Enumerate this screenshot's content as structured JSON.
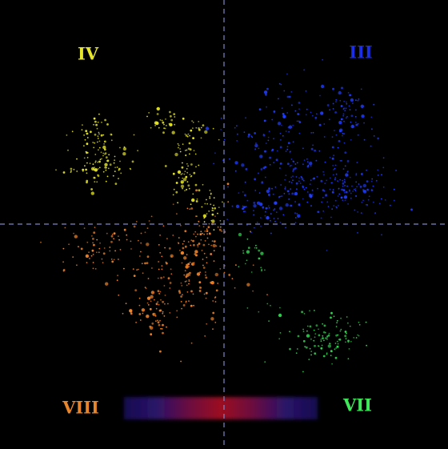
{
  "chart_data": {
    "type": "scatter",
    "title": "",
    "xlabel": "",
    "ylabel": "",
    "background": "#000000",
    "grid": false,
    "legend": "none",
    "xlim": [
      -280,
      280
    ],
    "ylim": [
      -281,
      280
    ],
    "crosshair": {
      "x": 0,
      "y": 0,
      "color": "#7f86c8",
      "style": "dashed"
    },
    "quadrant_labels": [
      {
        "text": "IV",
        "color": "#e6e62a",
        "x": -170,
        "y": 211
      },
      {
        "text": "III",
        "color": "#1a2ee6",
        "x": 171,
        "y": 213
      },
      {
        "text": "VIII",
        "color": "#e8842a",
        "x": -179,
        "y": -231
      },
      {
        "text": "VII",
        "color": "#3ee85a",
        "x": 167,
        "y": -228
      }
    ],
    "series": [
      {
        "color": "#e6e62a",
        "clusters": [
          {
            "cx": -155,
            "cy": 74,
            "sx": 20,
            "sy": 16,
            "n": 95
          },
          {
            "cx": -160,
            "cy": 116,
            "sx": 12,
            "sy": 10,
            "n": 35
          },
          {
            "cx": -77,
            "cy": 126,
            "sx": 11,
            "sy": 8,
            "n": 30
          },
          {
            "cx": -45,
            "cy": 88,
            "sx": 11,
            "sy": 14,
            "n": 35
          },
          {
            "cx": -48,
            "cy": 50,
            "sx": 9,
            "sy": 11,
            "n": 35
          },
          {
            "cx": -32,
            "cy": 114,
            "sx": 10,
            "sy": 10,
            "n": 15
          },
          {
            "cx": -18,
            "cy": 18,
            "sx": 8,
            "sy": 12,
            "n": 35
          }
        ]
      },
      {
        "color": "#1f3dff",
        "clusters": [
          {
            "cx": 70,
            "cy": 100,
            "sx": 34,
            "sy": 40,
            "n": 150
          },
          {
            "cx": 115,
            "cy": 40,
            "sx": 44,
            "sy": 22,
            "n": 140
          },
          {
            "cx": 150,
            "cy": 130,
            "sx": 20,
            "sy": 24,
            "n": 80
          },
          {
            "cx": 160,
            "cy": 48,
            "sx": 22,
            "sy": 14,
            "n": 60
          },
          {
            "cx": 48,
            "cy": 15,
            "sx": 16,
            "sy": 10,
            "n": 40
          }
        ]
      },
      {
        "color": "#f0842a",
        "clusters": [
          {
            "cx": -50,
            "cy": -60,
            "sx": 35,
            "sy": 42,
            "n": 200
          },
          {
            "cx": -150,
            "cy": -30,
            "sx": 28,
            "sy": 16,
            "n": 70
          },
          {
            "cx": -90,
            "cy": -110,
            "sx": 20,
            "sy": 12,
            "n": 35
          },
          {
            "cx": -25,
            "cy": -15,
            "sx": 12,
            "sy": 10,
            "n": 40
          }
        ]
      },
      {
        "color": "#30d850",
        "clusters": [
          {
            "cx": 126,
            "cy": -145,
            "sx": 22,
            "sy": 16,
            "n": 110
          },
          {
            "cx": 35,
            "cy": -45,
            "sx": 9,
            "sy": 18,
            "n": 20
          },
          {
            "cx": 55,
            "cy": -105,
            "sx": 14,
            "sy": 10,
            "n": 8
          }
        ]
      }
    ],
    "band": {
      "x": [
        -125,
        117
      ],
      "y": [
        -216,
        -244
      ],
      "colors": [
        "#151050",
        "#2a1268",
        "#6a1040",
        "#9c1020",
        "#6a1040",
        "#2a1268",
        "#151050"
      ]
    }
  }
}
